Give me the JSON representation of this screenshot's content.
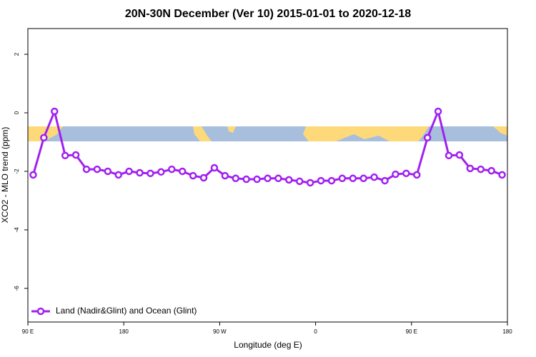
{
  "chart_data": {
    "type": "line",
    "title": "20N-30N December (Ver 10)   2015-01-01 to 2020-12-18",
    "xlabel": "Longitude (deg E)",
    "ylabel": "XCO2 - MLO trend (ppm)",
    "x": [
      95,
      105,
      115,
      125,
      135,
      145,
      155,
      165,
      175,
      185,
      195,
      205,
      215,
      225,
      235,
      245,
      255,
      265,
      275,
      285,
      295,
      305,
      315,
      325,
      335,
      345,
      355,
      365,
      375,
      385,
      395,
      405,
      415,
      425,
      435,
      445,
      455,
      465,
      475,
      485,
      495,
      505,
      515,
      525,
      535
    ],
    "series": [
      {
        "name": "Land (Nadir&Glint) and Ocean (Glint)",
        "color": "#a020f0",
        "values": [
          -2.12,
          -0.85,
          0.05,
          -1.46,
          -1.44,
          -1.93,
          -1.93,
          -2.0,
          -2.12,
          -2.0,
          -2.05,
          -2.07,
          -2.02,
          -1.93,
          -2.0,
          -2.15,
          -2.22,
          -1.88,
          -2.15,
          -2.24,
          -2.27,
          -2.27,
          -2.24,
          -2.24,
          -2.29,
          -2.34,
          -2.39,
          -2.32,
          -2.32,
          -2.24,
          -2.24,
          -2.24,
          -2.2,
          -2.32,
          -2.1,
          -2.07,
          -2.12,
          -0.85,
          0.05,
          -1.46,
          -1.44,
          -1.9,
          -1.93,
          -1.98,
          -2.12
        ]
      }
    ],
    "xlim": [
      90,
      540
    ],
    "xticks": [
      {
        "value": 90,
        "label": "90 E"
      },
      180,
      {
        "value": 270,
        "label": "90 W"
      },
      {
        "value": 360,
        "label": "0"
      },
      {
        "value": 450,
        "label": "90 E"
      },
      {
        "value": 540,
        "label": "180"
      }
    ],
    "ylim": [
      -7.15,
      2.88
    ],
    "yticks": [
      -6,
      -4,
      -2,
      0,
      2
    ],
    "legend": "bottom-left"
  }
}
